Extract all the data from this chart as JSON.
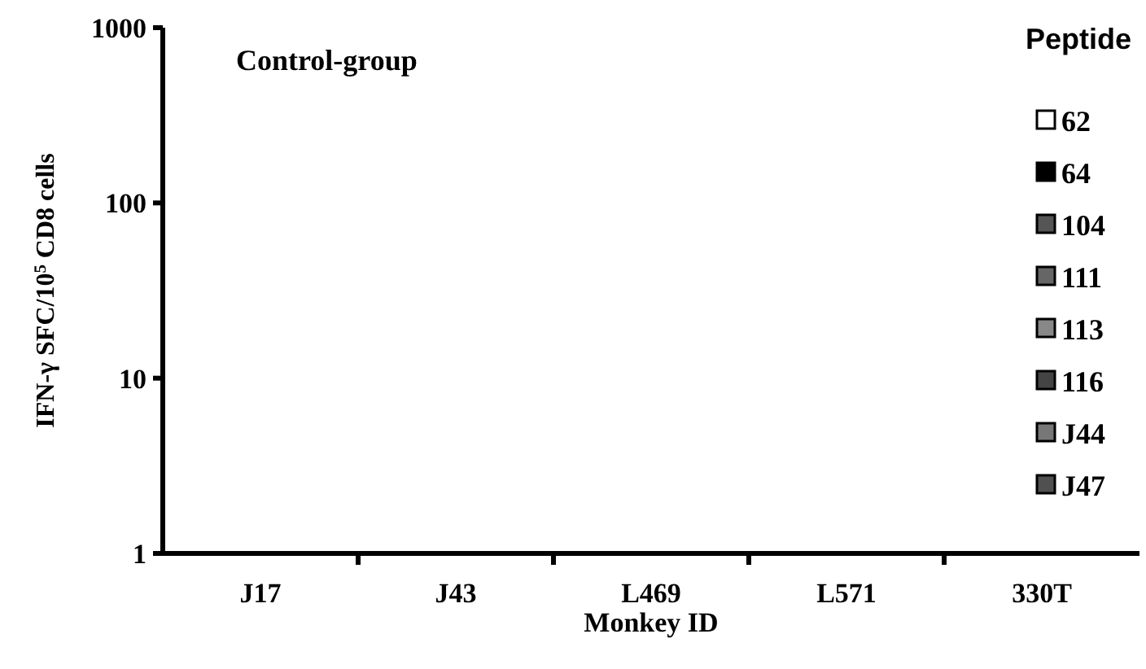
{
  "chart_data": {
    "type": "bar",
    "title": "Control-group",
    "xlabel": "Monkey ID",
    "ylabel": "IFN-γ SFC/10$^{5}$ CD8 cells",
    "legend_title": "Peptide",
    "categories": [
      "J17",
      "J43",
      "L469",
      "L571",
      "330T"
    ],
    "series": [
      {
        "name": "62",
        "color": "#ffffff",
        "values": [
          null,
          null,
          null,
          null,
          null
        ]
      },
      {
        "name": "64",
        "color": "#000000",
        "values": [
          null,
          null,
          null,
          null,
          null
        ]
      },
      {
        "name": "104",
        "color": "#555555",
        "values": [
          null,
          null,
          null,
          null,
          null
        ]
      },
      {
        "name": "111",
        "color": "#666666",
        "values": [
          null,
          null,
          null,
          null,
          null
        ]
      },
      {
        "name": "113",
        "color": "#888888",
        "values": [
          null,
          null,
          null,
          null,
          null
        ]
      },
      {
        "name": "116",
        "color": "#444444",
        "values": [
          null,
          null,
          null,
          null,
          null
        ]
      },
      {
        "name": "J44",
        "color": "#777777",
        "values": [
          null,
          null,
          null,
          null,
          null
        ]
      },
      {
        "name": "J47",
        "color": "#505050",
        "values": [
          null,
          null,
          null,
          null,
          null
        ]
      }
    ],
    "ylim": [
      1,
      1000
    ],
    "yticks": [
      1,
      10,
      100,
      1000
    ],
    "log": true,
    "grid": false,
    "legend": "right"
  }
}
